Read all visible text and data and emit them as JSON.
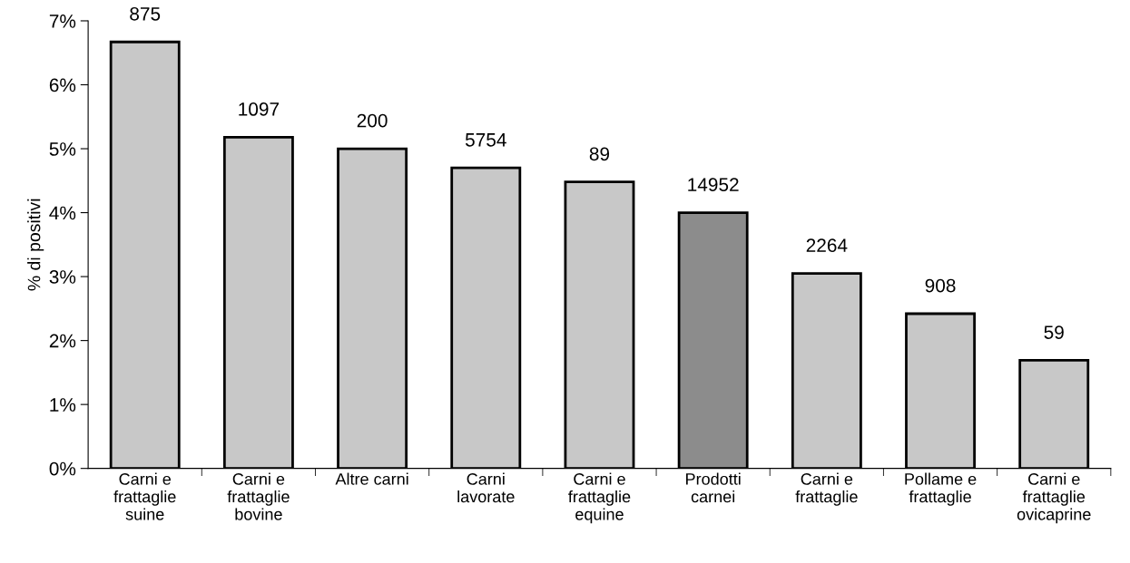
{
  "chart_data": {
    "type": "bar",
    "ylabel": "% di positivi",
    "categories": [
      "Carni e\nfrattaglie\nsuine",
      "Carni e\nfrattaglie\nbovine",
      "Altre carni",
      "Carni\nlavorate",
      "Carni e\nfrattaglie\nequine",
      "Prodotti\ncarnei",
      "Carni e\nfrattaglie",
      "Pollame e\nfrattaglie",
      "Carni e\nfrattaglie\novicaprine"
    ],
    "values": [
      6.67,
      5.18,
      5.0,
      4.7,
      4.48,
      4.0,
      3.05,
      2.42,
      1.69
    ],
    "colors": [
      "#c8c8c8",
      "#c8c8c8",
      "#c8c8c8",
      "#c8c8c8",
      "#c8c8c8",
      "#8c8c8c",
      "#c8c8c8",
      "#c8c8c8",
      "#c8c8c8"
    ],
    "annotations": [
      {
        "text": "875",
        "x": "Carni e\nfrattaglie\nsuine",
        "y": 6.67
      },
      {
        "text": "1097",
        "x": "Carni e\nfrattaglie\nbovine",
        "y": 5.18
      },
      {
        "text": "200",
        "x": "Altre carni",
        "y": 5.0
      },
      {
        "text": "5754",
        "x": "Carni\nlavorate",
        "y": 4.7
      },
      {
        "text": "89",
        "x": "Carni e\nfrattaglie\nequine",
        "y": 4.48
      },
      {
        "text": "14952",
        "x": "Prodotti\ncarnei",
        "y": 4.0
      },
      {
        "text": "2264",
        "x": "Carni e\nfrattaglie",
        "y": 3.05
      },
      {
        "text": "908",
        "x": "Pollame e\nfrattaglie",
        "y": 2.42
      },
      {
        "text": "59",
        "x": "Carni e\nfrattaglie\novicaprine",
        "y": 1.69
      }
    ],
    "ylim": [
      0,
      7
    ],
    "yticks": [
      {
        "value": 0,
        "label": "0%"
      },
      {
        "value": 1,
        "label": "1%"
      },
      {
        "value": 2,
        "label": "2%"
      },
      {
        "value": 3,
        "label": "3%"
      },
      {
        "value": 4,
        "label": "4%"
      },
      {
        "value": 5,
        "label": "5%"
      },
      {
        "value": 6,
        "label": "6%"
      },
      {
        "value": 7,
        "label": "7%"
      }
    ],
    "grid": false,
    "legend": false
  }
}
